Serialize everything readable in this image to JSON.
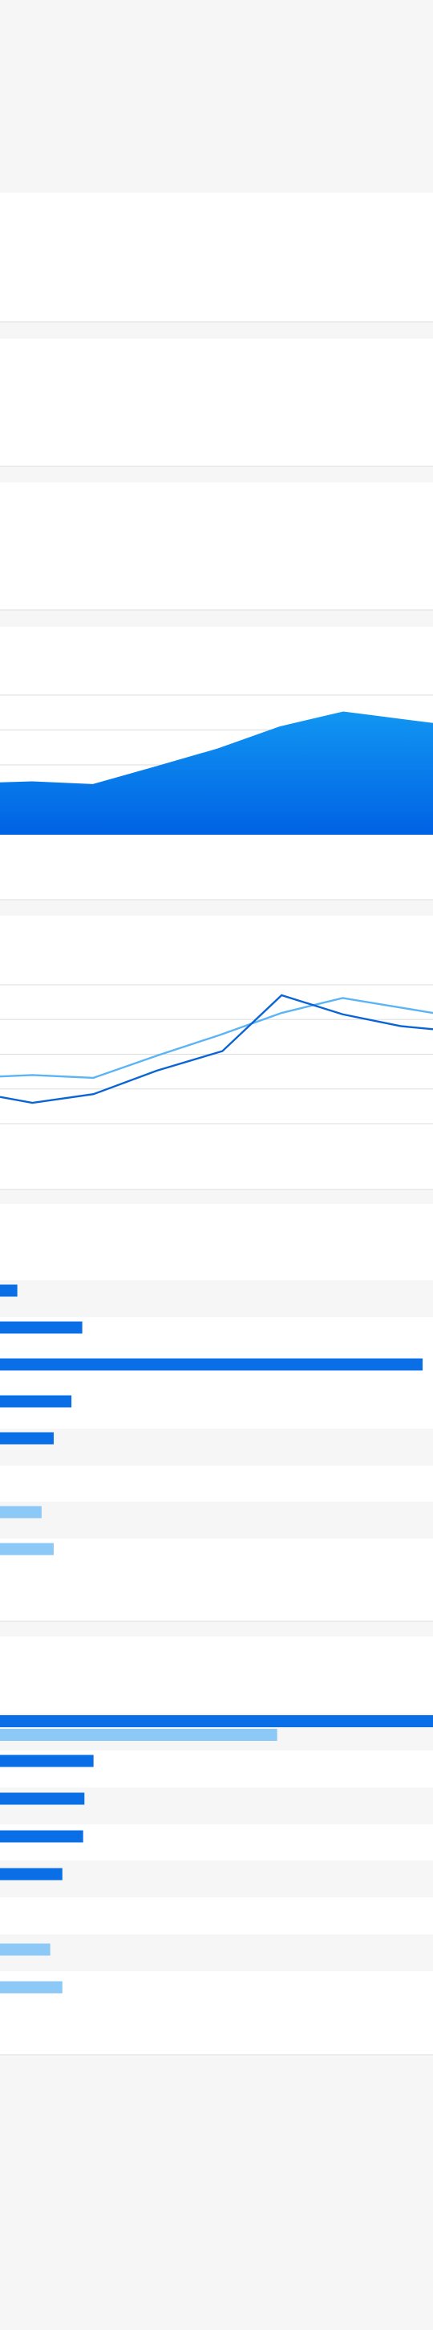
{
  "charts": [
    {
      "type": "area",
      "color": "#0a7ff0",
      "xlim": [
        0,
        7
      ],
      "x": [
        0,
        0.52,
        1.5,
        2.52,
        3.52,
        4.52,
        5.55,
        7
      ],
      "values": [
        1.5,
        1.53,
        1.45,
        1.96,
        2.47,
        3.1,
        3.53,
        3.2
      ],
      "ylim": [
        0,
        4
      ],
      "yticks": [
        2,
        3,
        4
      ],
      "grid": true
    },
    {
      "type": "line",
      "xlim": [
        0,
        6.95
      ],
      "ylim": [
        0,
        4
      ],
      "yticks": [
        0,
        1,
        2,
        3,
        4
      ],
      "grid": true,
      "series": [
        {
          "color": "#5ab4f5",
          "x": [
            0,
            0.52,
            1.5,
            2.52,
            3.52,
            4.52,
            5.5,
            6.95
          ],
          "values": [
            1.36,
            1.4,
            1.32,
            1.96,
            2.55,
            3.19,
            3.62,
            3.19
          ]
        },
        {
          "color": "#0a64d6",
          "x": [
            0,
            0.52,
            1.5,
            2.52,
            3.57,
            4.52,
            5.5,
            6.43,
            6.95
          ],
          "values": [
            0.77,
            0.6,
            0.85,
            1.53,
            2.09,
            3.7,
            3.15,
            2.81,
            2.72
          ]
        }
      ]
    },
    {
      "type": "barlist",
      "xlim": [
        0,
        100
      ],
      "series": [
        {
          "color": "#0a6fe6",
          "values": [
            4,
            19,
            97.6,
            16.5,
            12.4,
            null,
            null,
            null
          ]
        },
        {
          "color": "#8cc9f7",
          "values": [
            null,
            null,
            null,
            null,
            null,
            null,
            9.6,
            12.4
          ]
        }
      ]
    },
    {
      "type": "barlist",
      "xlim": [
        0,
        100
      ],
      "series": [
        {
          "color": "#0a6fe6",
          "values": [
            100,
            21.6,
            19.5,
            19.2,
            14.4,
            null,
            null,
            null
          ]
        },
        {
          "color": "#8cc9f7",
          "values": [
            64,
            null,
            null,
            null,
            null,
            null,
            11.6,
            14.4
          ]
        }
      ]
    }
  ]
}
